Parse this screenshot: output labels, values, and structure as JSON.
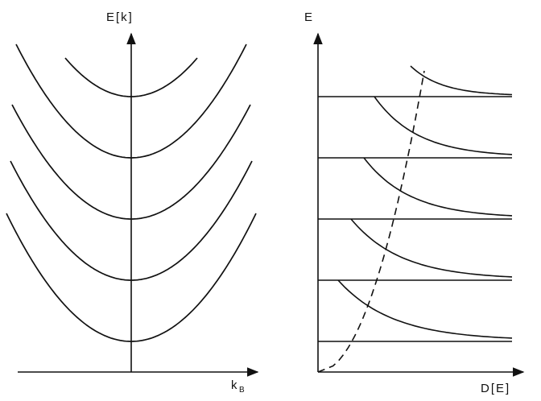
{
  "left_panel": {
    "y_axis_label": "E[k]",
    "x_axis_label_main": "k",
    "x_axis_label_sub": "B",
    "band_count": 5
  },
  "right_panel": {
    "y_axis_label": "E",
    "x_axis_label": "D[E]",
    "level_count": 5
  },
  "colors": {
    "ink": "#111111",
    "background": "#ffffff"
  }
}
